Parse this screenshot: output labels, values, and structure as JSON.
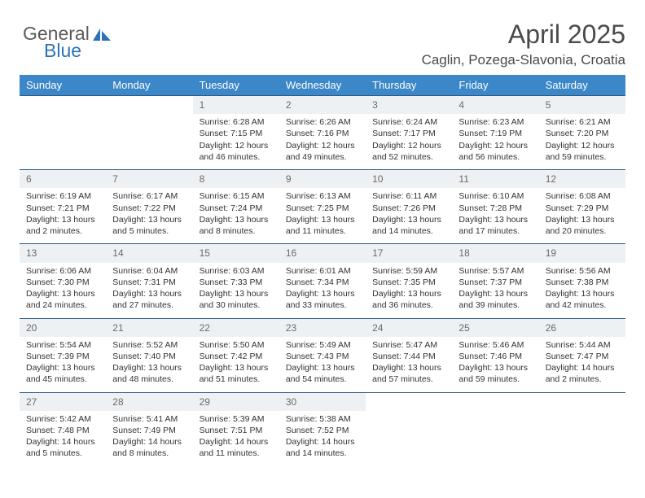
{
  "logo": {
    "word1": "General",
    "word2": "Blue"
  },
  "header": {
    "title": "April 2025",
    "subtitle": "Caglin, Pozega-Slavonia, Croatia"
  },
  "colors": {
    "header_bg": "#3c87c7",
    "header_text": "#ffffff",
    "row_border": "#2d5a87",
    "daynum_bg": "#eef1f3",
    "logo_gray": "#5b5b5b",
    "logo_blue": "#2d72b5"
  },
  "day_names": [
    "Sunday",
    "Monday",
    "Tuesday",
    "Wednesday",
    "Thursday",
    "Friday",
    "Saturday"
  ],
  "weeks": [
    [
      {
        "n": "",
        "sunrise": "",
        "sunset": "",
        "day1": "",
        "day2": "",
        "empty": true
      },
      {
        "n": "",
        "sunrise": "",
        "sunset": "",
        "day1": "",
        "day2": "",
        "empty": true
      },
      {
        "n": "1",
        "sunrise": "Sunrise: 6:28 AM",
        "sunset": "Sunset: 7:15 PM",
        "day1": "Daylight: 12 hours",
        "day2": "and 46 minutes."
      },
      {
        "n": "2",
        "sunrise": "Sunrise: 6:26 AM",
        "sunset": "Sunset: 7:16 PM",
        "day1": "Daylight: 12 hours",
        "day2": "and 49 minutes."
      },
      {
        "n": "3",
        "sunrise": "Sunrise: 6:24 AM",
        "sunset": "Sunset: 7:17 PM",
        "day1": "Daylight: 12 hours",
        "day2": "and 52 minutes."
      },
      {
        "n": "4",
        "sunrise": "Sunrise: 6:23 AM",
        "sunset": "Sunset: 7:19 PM",
        "day1": "Daylight: 12 hours",
        "day2": "and 56 minutes."
      },
      {
        "n": "5",
        "sunrise": "Sunrise: 6:21 AM",
        "sunset": "Sunset: 7:20 PM",
        "day1": "Daylight: 12 hours",
        "day2": "and 59 minutes."
      }
    ],
    [
      {
        "n": "6",
        "sunrise": "Sunrise: 6:19 AM",
        "sunset": "Sunset: 7:21 PM",
        "day1": "Daylight: 13 hours",
        "day2": "and 2 minutes."
      },
      {
        "n": "7",
        "sunrise": "Sunrise: 6:17 AM",
        "sunset": "Sunset: 7:22 PM",
        "day1": "Daylight: 13 hours",
        "day2": "and 5 minutes."
      },
      {
        "n": "8",
        "sunrise": "Sunrise: 6:15 AM",
        "sunset": "Sunset: 7:24 PM",
        "day1": "Daylight: 13 hours",
        "day2": "and 8 minutes."
      },
      {
        "n": "9",
        "sunrise": "Sunrise: 6:13 AM",
        "sunset": "Sunset: 7:25 PM",
        "day1": "Daylight: 13 hours",
        "day2": "and 11 minutes."
      },
      {
        "n": "10",
        "sunrise": "Sunrise: 6:11 AM",
        "sunset": "Sunset: 7:26 PM",
        "day1": "Daylight: 13 hours",
        "day2": "and 14 minutes."
      },
      {
        "n": "11",
        "sunrise": "Sunrise: 6:10 AM",
        "sunset": "Sunset: 7:28 PM",
        "day1": "Daylight: 13 hours",
        "day2": "and 17 minutes."
      },
      {
        "n": "12",
        "sunrise": "Sunrise: 6:08 AM",
        "sunset": "Sunset: 7:29 PM",
        "day1": "Daylight: 13 hours",
        "day2": "and 20 minutes."
      }
    ],
    [
      {
        "n": "13",
        "sunrise": "Sunrise: 6:06 AM",
        "sunset": "Sunset: 7:30 PM",
        "day1": "Daylight: 13 hours",
        "day2": "and 24 minutes."
      },
      {
        "n": "14",
        "sunrise": "Sunrise: 6:04 AM",
        "sunset": "Sunset: 7:31 PM",
        "day1": "Daylight: 13 hours",
        "day2": "and 27 minutes."
      },
      {
        "n": "15",
        "sunrise": "Sunrise: 6:03 AM",
        "sunset": "Sunset: 7:33 PM",
        "day1": "Daylight: 13 hours",
        "day2": "and 30 minutes."
      },
      {
        "n": "16",
        "sunrise": "Sunrise: 6:01 AM",
        "sunset": "Sunset: 7:34 PM",
        "day1": "Daylight: 13 hours",
        "day2": "and 33 minutes."
      },
      {
        "n": "17",
        "sunrise": "Sunrise: 5:59 AM",
        "sunset": "Sunset: 7:35 PM",
        "day1": "Daylight: 13 hours",
        "day2": "and 36 minutes."
      },
      {
        "n": "18",
        "sunrise": "Sunrise: 5:57 AM",
        "sunset": "Sunset: 7:37 PM",
        "day1": "Daylight: 13 hours",
        "day2": "and 39 minutes."
      },
      {
        "n": "19",
        "sunrise": "Sunrise: 5:56 AM",
        "sunset": "Sunset: 7:38 PM",
        "day1": "Daylight: 13 hours",
        "day2": "and 42 minutes."
      }
    ],
    [
      {
        "n": "20",
        "sunrise": "Sunrise: 5:54 AM",
        "sunset": "Sunset: 7:39 PM",
        "day1": "Daylight: 13 hours",
        "day2": "and 45 minutes."
      },
      {
        "n": "21",
        "sunrise": "Sunrise: 5:52 AM",
        "sunset": "Sunset: 7:40 PM",
        "day1": "Daylight: 13 hours",
        "day2": "and 48 minutes."
      },
      {
        "n": "22",
        "sunrise": "Sunrise: 5:50 AM",
        "sunset": "Sunset: 7:42 PM",
        "day1": "Daylight: 13 hours",
        "day2": "and 51 minutes."
      },
      {
        "n": "23",
        "sunrise": "Sunrise: 5:49 AM",
        "sunset": "Sunset: 7:43 PM",
        "day1": "Daylight: 13 hours",
        "day2": "and 54 minutes."
      },
      {
        "n": "24",
        "sunrise": "Sunrise: 5:47 AM",
        "sunset": "Sunset: 7:44 PM",
        "day1": "Daylight: 13 hours",
        "day2": "and 57 minutes."
      },
      {
        "n": "25",
        "sunrise": "Sunrise: 5:46 AM",
        "sunset": "Sunset: 7:46 PM",
        "day1": "Daylight: 13 hours",
        "day2": "and 59 minutes."
      },
      {
        "n": "26",
        "sunrise": "Sunrise: 5:44 AM",
        "sunset": "Sunset: 7:47 PM",
        "day1": "Daylight: 14 hours",
        "day2": "and 2 minutes."
      }
    ],
    [
      {
        "n": "27",
        "sunrise": "Sunrise: 5:42 AM",
        "sunset": "Sunset: 7:48 PM",
        "day1": "Daylight: 14 hours",
        "day2": "and 5 minutes."
      },
      {
        "n": "28",
        "sunrise": "Sunrise: 5:41 AM",
        "sunset": "Sunset: 7:49 PM",
        "day1": "Daylight: 14 hours",
        "day2": "and 8 minutes."
      },
      {
        "n": "29",
        "sunrise": "Sunrise: 5:39 AM",
        "sunset": "Sunset: 7:51 PM",
        "day1": "Daylight: 14 hours",
        "day2": "and 11 minutes."
      },
      {
        "n": "30",
        "sunrise": "Sunrise: 5:38 AM",
        "sunset": "Sunset: 7:52 PM",
        "day1": "Daylight: 14 hours",
        "day2": "and 14 minutes."
      },
      {
        "n": "",
        "sunrise": "",
        "sunset": "",
        "day1": "",
        "day2": "",
        "empty": true
      },
      {
        "n": "",
        "sunrise": "",
        "sunset": "",
        "day1": "",
        "day2": "",
        "empty": true
      },
      {
        "n": "",
        "sunrise": "",
        "sunset": "",
        "day1": "",
        "day2": "",
        "empty": true
      }
    ]
  ]
}
